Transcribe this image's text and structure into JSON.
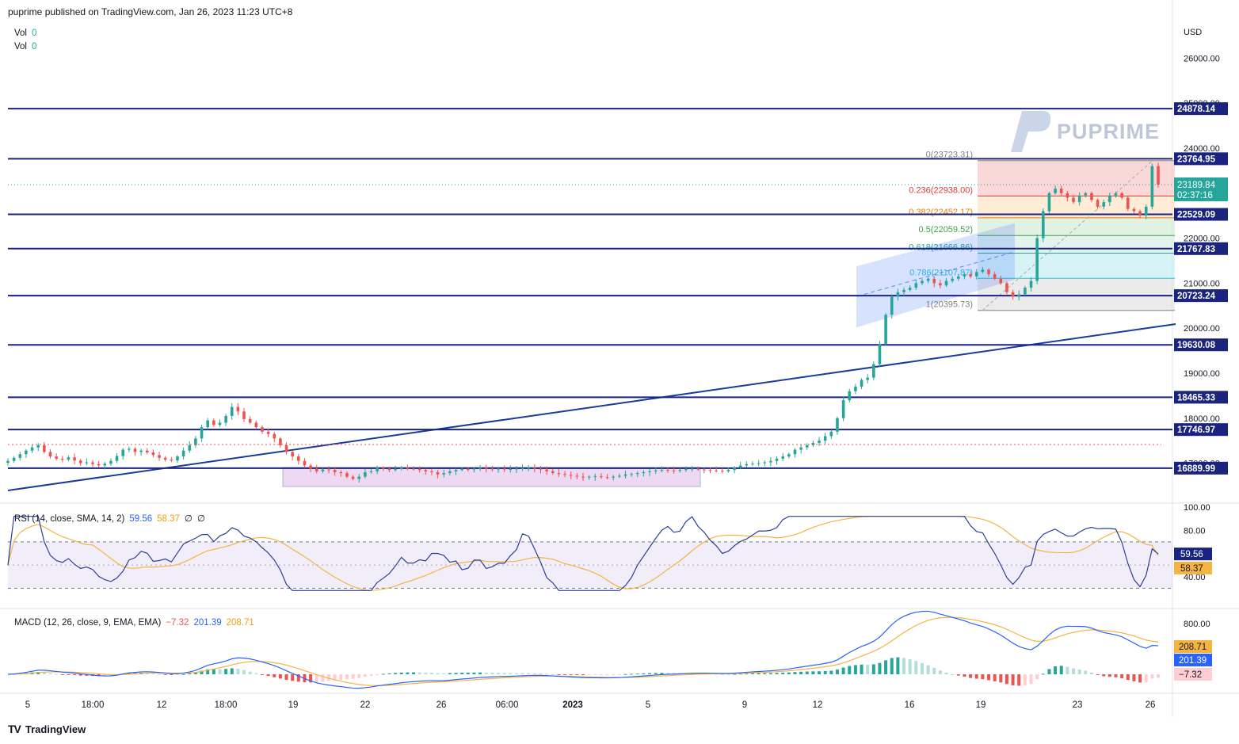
{
  "header": {
    "published": "puprime published on TradingView.com, Jan 26, 2023 11:23 UTC+8"
  },
  "footer": {
    "brand": "TradingView"
  },
  "legend": {
    "vol1": {
      "label": "Vol",
      "value": "0"
    },
    "vol2": {
      "label": "Vol",
      "value": "0"
    },
    "rsi": {
      "label": "RSI (14, close, SMA, 14, 2)",
      "value": "59.56",
      "sma": "58.37",
      "extra1": "∅",
      "extra2": "∅"
    },
    "macd": {
      "label": "MACD (12, 26, close, 9, EMA, EMA)",
      "hist": "−7.32",
      "macd": "201.39",
      "signal": "208.71"
    }
  },
  "currency": "USD",
  "watermark": "PUPRIME",
  "colors": {
    "up": "#26a69a",
    "down": "#ef5350",
    "level_line": "#1a237e",
    "rsi_line": "#2a3f99",
    "rsi_sma": "#f5b342",
    "macd_line": "#2962ff",
    "signal_line": "#f5b342"
  },
  "chart_data": {
    "type": "candlestick",
    "symbol_currency": "USD",
    "price_axis_ticks": [
      "26000.00",
      "25000.00",
      "24000.00",
      "22000.00",
      "21000.00",
      "20000.00",
      "19000.00",
      "18000.00",
      "17000.00"
    ],
    "time_axis_ticks": [
      "5",
      "18:00",
      "12",
      "18:00",
      "19",
      "22",
      "26",
      "06:00",
      "2023",
      "5",
      "9",
      "12",
      "16",
      "19",
      "23",
      "26"
    ],
    "horizontal_levels": [
      24878.14,
      23764.95,
      22529.09,
      21767.83,
      20723.24,
      19630.08,
      18465.33,
      17746.97,
      16889.99
    ],
    "level_labels": [
      "24878.14",
      "23764.95",
      "22529.09",
      "21767.83",
      "20723.24",
      "19630.08",
      "18465.33",
      "17746.97",
      "16889.99"
    ],
    "current_price": "23189.84",
    "countdown": "02:37:16",
    "fibonacci": [
      {
        "label": "0(23723.31)",
        "value": 23723.31
      },
      {
        "label": "0.236(22938.00)",
        "value": 22938.0
      },
      {
        "label": "0.382(22452.17)",
        "value": 22452.17
      },
      {
        "label": "0.5(22059.52)",
        "value": 22059.52
      },
      {
        "label": "0.618(21666.86)",
        "value": 21666.86
      },
      {
        "label": "0.786(21107.87)",
        "value": 21107.87
      },
      {
        "label": "1(20395.73)",
        "value": 20395.73
      }
    ],
    "close_series": [
      17050,
      17120,
      17200,
      17280,
      17350,
      17400,
      17250,
      17150,
      17100,
      17080,
      17130,
      17060,
      17000,
      17020,
      16980,
      16950,
      16990,
      17050,
      17160,
      17300,
      17320,
      17250,
      17280,
      17240,
      17180,
      17120,
      17080,
      17060,
      17150,
      17280,
      17400,
      17550,
      17800,
      17950,
      17850,
      17900,
      18050,
      18250,
      18150,
      17980,
      17900,
      17800,
      17700,
      17650,
      17550,
      17400,
      17250,
      17150,
      17050,
      16950,
      16880,
      16820,
      16860,
      16850,
      16800,
      16780,
      16700,
      16650,
      16700,
      16800,
      16820,
      16900,
      16880,
      16850,
      16870,
      16900,
      16880,
      16870,
      16850,
      16820,
      16800,
      16750,
      16780,
      16820,
      16850,
      16870,
      16860,
      16880,
      16900,
      16880,
      16870,
      16880,
      16860,
      16870,
      16880,
      16890,
      16900,
      16880,
      16860,
      16820,
      16780,
      16760,
      16740,
      16720,
      16700,
      16680,
      16700,
      16710,
      16690,
      16680,
      16700,
      16720,
      16750,
      16760,
      16780,
      16800,
      16820,
      16840,
      16850,
      16840,
      16830,
      16850,
      16870,
      16880,
      16860,
      16850,
      16840,
      16830,
      16820,
      16850,
      16900,
      16950,
      16980,
      16990,
      17000,
      17020,
      17050,
      17100,
      17150,
      17200,
      17300,
      17350,
      17400,
      17450,
      17500,
      17600,
      17700,
      18000,
      18400,
      18600,
      18700,
      18850,
      18900,
      19200,
      19650,
      20300,
      20700,
      20800,
      20850,
      20900,
      21000,
      21050,
      21100,
      21000,
      20950,
      21050,
      21100,
      21150,
      21200,
      21150,
      21250,
      21300,
      21200,
      21100,
      21000,
      20800,
      20700,
      20750,
      20900,
      21050,
      22000,
      22600,
      23000,
      23100,
      23000,
      22900,
      22800,
      22950,
      23000,
      22850,
      22700,
      22800,
      22950,
      23000,
      22900,
      22650,
      22600,
      22500,
      22700,
      23600,
      23190
    ],
    "rsi": {
      "value": 59.56,
      "sma": 58.37,
      "levels": [
        70,
        30
      ],
      "ticks": [
        "100.00",
        "80.00",
        "40.00"
      ]
    },
    "macd": {
      "hist": -7.32,
      "macd": 201.39,
      "signal": 208.71,
      "ticks": [
        "800.00"
      ]
    }
  }
}
